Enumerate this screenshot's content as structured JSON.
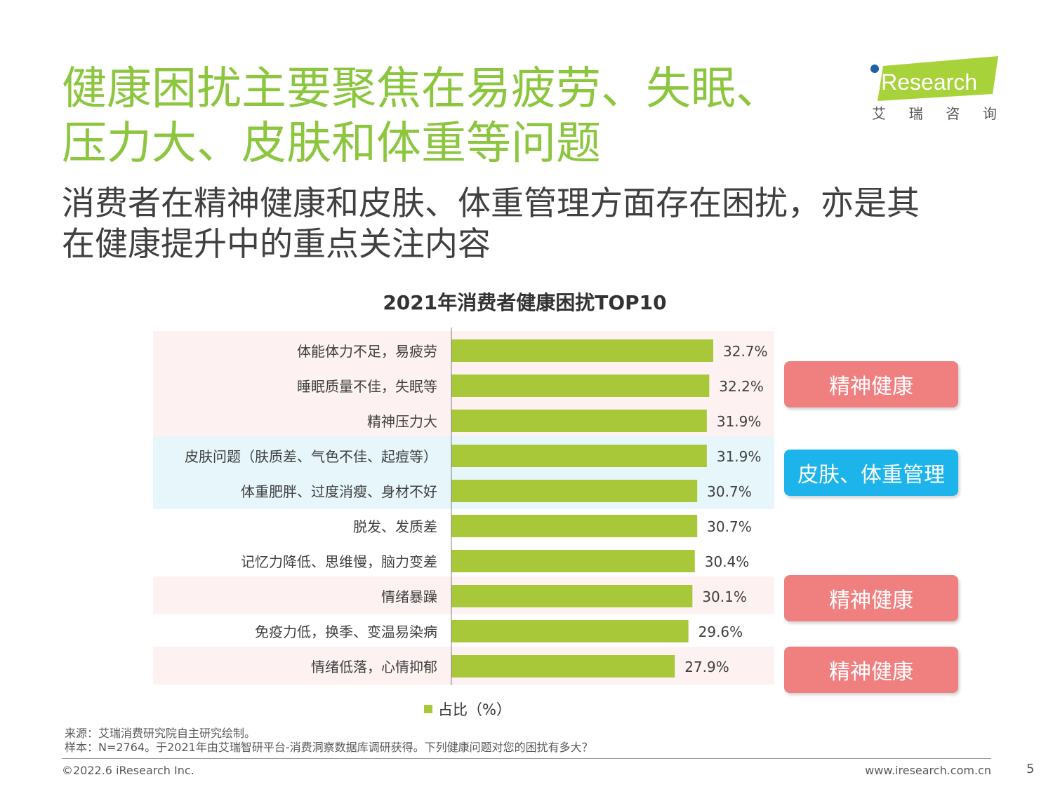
{
  "title": {
    "line1": "健康困扰主要聚焦在易疲劳、失眠、",
    "line2": "压力大、皮肤和体重等问题"
  },
  "subtitle": {
    "line1": "消费者在精神健康和皮肤、体重管理方面存在困扰，亦是其",
    "line2": "在健康提升中的重点关注内容"
  },
  "logo": {
    "brand": "iResearch",
    "cn": [
      "艾",
      "瑞",
      "咨",
      "询"
    ]
  },
  "chart_data": {
    "type": "bar",
    "orientation": "horizontal",
    "title": "2021年消费者健康困扰TOP10",
    "categories": [
      "体能体力不足，易疲劳",
      "睡眠质量不佳，失眠等",
      "精神压力大",
      "皮肤问题（肤质差、气色不佳、起痘等）",
      "体重肥胖、过度消瘦、身材不好",
      "脱发、发质差",
      "记忆力降低、思维慢，脑力变差",
      "情绪暴躁",
      "免疫力低，换季、变温易染病",
      "情绪低落，心情抑郁"
    ],
    "series": [
      {
        "name": "占比（%）",
        "values": [
          32.7,
          32.2,
          31.9,
          31.9,
          30.7,
          30.7,
          30.4,
          30.1,
          29.6,
          27.9
        ],
        "labels": [
          "32.7%",
          "32.2%",
          "31.9%",
          "31.9%",
          "30.7%",
          "30.7%",
          "30.4%",
          "30.1%",
          "29.6%",
          "27.9%"
        ]
      }
    ],
    "xlim": [
      0,
      32.7
    ],
    "grid": false,
    "legend": "bottom",
    "bar_color": "#a8c83a",
    "row_highlights": [
      {
        "rows": [
          0,
          1,
          2
        ],
        "color": "#fdf1f1"
      },
      {
        "rows": [
          3,
          4
        ],
        "color": "#e6f6fb"
      },
      {
        "rows": [
          7
        ],
        "color": "#fdf1f1"
      },
      {
        "rows": [
          9
        ],
        "color": "#fdf1f1"
      }
    ]
  },
  "tags": {
    "mental1": "精神健康",
    "skin_weight": "皮肤、体重管理",
    "mental2": "精神健康",
    "mental3": "精神健康"
  },
  "colors": {
    "title_green": "#8cc63f",
    "tag_pink": "#f08080",
    "tag_blue": "#1cb4ea"
  },
  "notes": {
    "source": "来源：艾瑞消费研究院自主研究绘制。",
    "sample": "样本：N=2764。于2021年由艾瑞智研平台-消费洞察数据库调研获得。下列健康问题对您的困扰有多大？"
  },
  "footer": {
    "copyright": "©2022.6 iResearch Inc.",
    "website": "www.iresearch.com.cn",
    "page": "5"
  }
}
